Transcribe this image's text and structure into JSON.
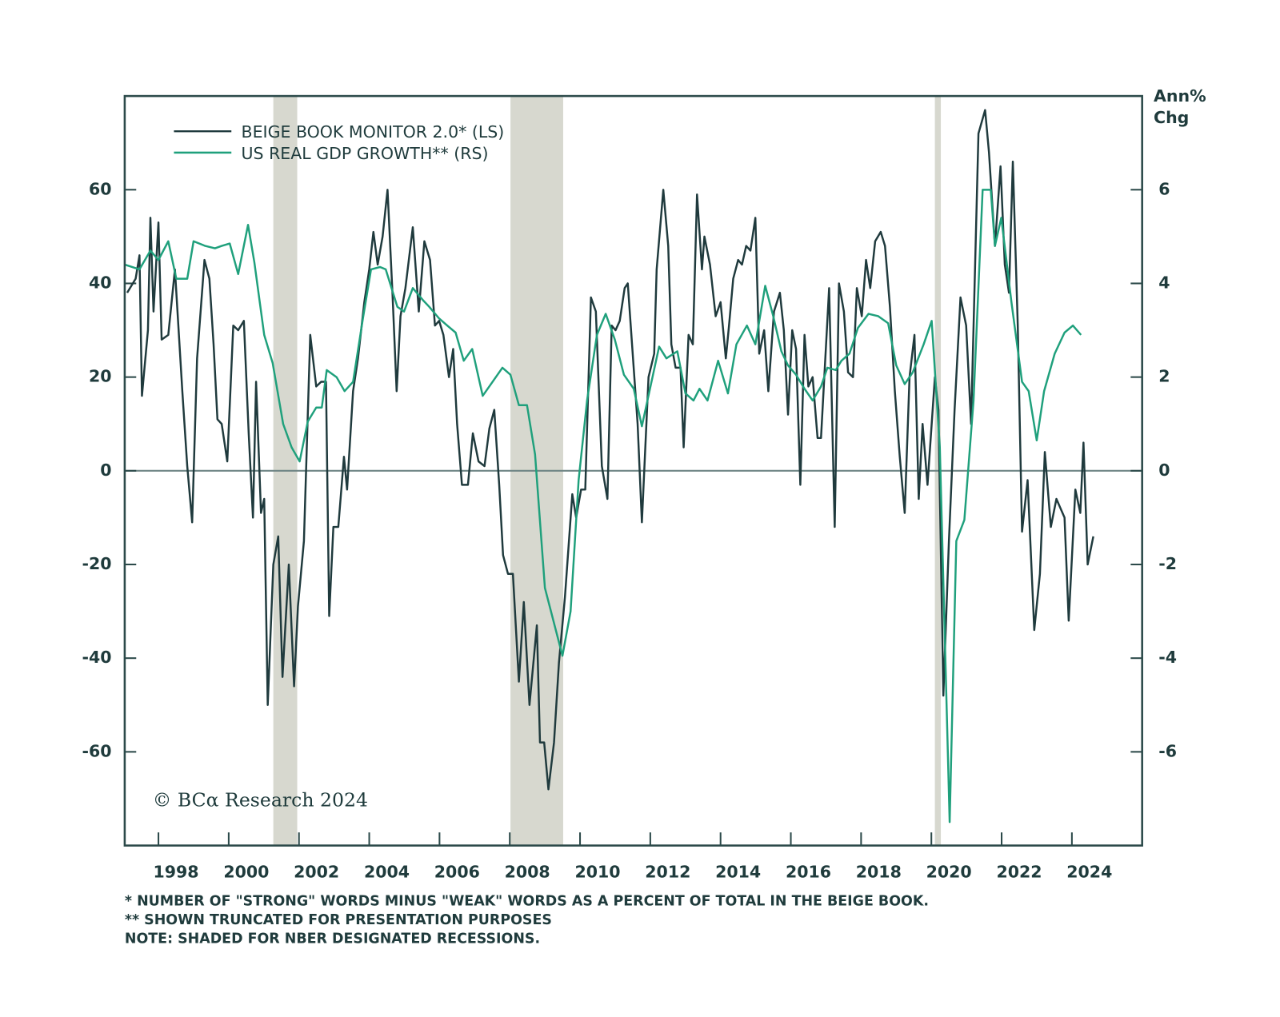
{
  "chart_data": {
    "type": "line",
    "series": [
      {
        "name": "BEIGE BOOK MONITOR 2.0* (LS)",
        "color": "#1f3a3d",
        "axis": "y",
        "x": [
          1997.11,
          1997.35,
          1997.46,
          1997.53,
          1997.7,
          1997.77,
          1997.86,
          1998.0,
          1998.09,
          1998.28,
          1998.47,
          1998.68,
          1998.82,
          1998.96,
          1999.1,
          1999.31,
          1999.45,
          1999.57,
          1999.68,
          1999.8,
          1999.96,
          2000.13,
          2000.27,
          2000.43,
          2000.57,
          2000.69,
          2000.78,
          2000.92,
          2001.01,
          2001.11,
          2001.27,
          2001.41,
          2001.53,
          2001.71,
          2001.86,
          2001.97,
          2002.14,
          2002.32,
          2002.49,
          2002.63,
          2002.77,
          2002.86,
          2002.98,
          2003.12,
          2003.28,
          2003.37,
          2003.54,
          2003.68,
          2003.86,
          2004.0,
          2004.12,
          2004.24,
          2004.38,
          2004.52,
          2004.66,
          2004.78,
          2004.89,
          2005.03,
          2005.24,
          2005.41,
          2005.57,
          2005.73,
          2005.87,
          2005.99,
          2006.11,
          2006.27,
          2006.39,
          2006.5,
          2006.64,
          2006.81,
          2006.95,
          2007.11,
          2007.28,
          2007.42,
          2007.56,
          2007.7,
          2007.81,
          2007.95,
          2008.09,
          2008.26,
          2008.4,
          2008.56,
          2008.77,
          2008.86,
          2008.98,
          2009.1,
          2009.26,
          2009.4,
          2009.57,
          2009.78,
          2009.89,
          2010.03,
          2010.15,
          2010.31,
          2010.45,
          2010.62,
          2010.78,
          2010.9,
          2011.01,
          2011.13,
          2011.27,
          2011.36,
          2011.48,
          2011.64,
          2011.76,
          2011.95,
          2012.11,
          2012.18,
          2012.37,
          2012.51,
          2012.6,
          2012.72,
          2012.86,
          2012.95,
          2013.09,
          2013.21,
          2013.33,
          2013.47,
          2013.54,
          2013.7,
          2013.86,
          2014.0,
          2014.15,
          2014.24,
          2014.36,
          2014.5,
          2014.61,
          2014.73,
          2014.85,
          2014.99,
          2015.1,
          2015.24,
          2015.36,
          2015.52,
          2015.69,
          2015.8,
          2015.92,
          2016.04,
          2016.15,
          2016.27,
          2016.39,
          2016.5,
          2016.62,
          2016.76,
          2016.86,
          2017.09,
          2017.25,
          2017.37,
          2017.51,
          2017.63,
          2017.77,
          2017.88,
          2018.02,
          2018.14,
          2018.26,
          2018.4,
          2018.56,
          2018.68,
          2018.82,
          2018.96,
          2019.1,
          2019.24,
          2019.38,
          2019.52,
          2019.64,
          2019.75,
          2019.89,
          2020.1,
          2020.2,
          2020.34,
          2020.5,
          2020.66,
          2020.83,
          2020.99,
          2021.13,
          2021.34,
          2021.53,
          2021.64,
          2021.81,
          2021.97,
          2022.09,
          2022.21,
          2022.32,
          2022.46,
          2022.58,
          2022.74,
          2022.93,
          2023.09,
          2023.23,
          2023.4,
          2023.56,
          2023.79,
          2023.91,
          2024.1,
          2024.24,
          2024.33,
          2024.45,
          2024.61
        ],
        "values": [
          38,
          41,
          46,
          16,
          30,
          54,
          34,
          53,
          28,
          29,
          43,
          17,
          1,
          -11,
          24,
          45,
          41,
          27,
          11,
          10,
          2,
          31,
          30,
          32,
          8,
          -10,
          19,
          -9,
          -6,
          -50,
          -20,
          -14,
          -44,
          -20,
          -46,
          -29,
          -15,
          29,
          18,
          19,
          19,
          -31,
          -12,
          -12,
          3,
          -4,
          17,
          24,
          36,
          43,
          51,
          44,
          50,
          60,
          38,
          17,
          33,
          39,
          52,
          34,
          49,
          45,
          31,
          32,
          29,
          20,
          26,
          10,
          -3,
          -3,
          8,
          2,
          1,
          9,
          13,
          -3,
          -18,
          -22,
          -22,
          -45,
          -28,
          -50,
          -33,
          -58,
          -58,
          -68,
          -58,
          -41,
          -27,
          -5,
          -10,
          -4,
          -4,
          37,
          34,
          1,
          -6,
          31,
          30,
          32,
          39,
          40,
          27,
          10,
          -11,
          20,
          25,
          43,
          60,
          48,
          27,
          22,
          22,
          5,
          29,
          27,
          59,
          43,
          50,
          44,
          33,
          36,
          24,
          31,
          41,
          45,
          44,
          48,
          47,
          54,
          25,
          30,
          17,
          34,
          38,
          30,
          12,
          30,
          26,
          -3,
          29,
          18,
          20,
          7,
          7,
          39,
          -12,
          40,
          34,
          21,
          20,
          39,
          33,
          45,
          39,
          49,
          51,
          48,
          35,
          17,
          3,
          -9,
          20,
          29,
          -6,
          10,
          -3,
          20,
          13,
          -48,
          -15,
          13,
          37,
          31,
          10,
          72,
          77,
          68,
          48,
          65,
          44,
          38,
          66,
          31,
          -13,
          -2,
          -34,
          -22,
          4,
          -12,
          -6,
          -10,
          -32,
          -4,
          -9,
          6,
          -20,
          -14
        ]
      },
      {
        "name": "US REAL GDP GROWTH** (RS)",
        "color": "#1fa07c",
        "axis": "y2",
        "x": [
          1997.04,
          1997.46,
          1997.77,
          1998.0,
          1998.28,
          1998.51,
          1998.82,
          1999.0,
          1999.33,
          1999.61,
          1999.8,
          2000.03,
          2000.27,
          2000.55,
          2000.73,
          2001.01,
          2001.25,
          2001.55,
          2001.79,
          2002.02,
          2002.25,
          2002.49,
          2002.65,
          2002.79,
          2003.07,
          2003.3,
          2003.54,
          2003.82,
          2004.05,
          2004.31,
          2004.47,
          2004.8,
          2004.99,
          2005.24,
          2005.52,
          2005.71,
          2005.99,
          2006.22,
          2006.46,
          2006.69,
          2006.93,
          2007.23,
          2007.51,
          2007.79,
          2008.02,
          2008.26,
          2008.49,
          2008.72,
          2009.0,
          2009.26,
          2009.5,
          2009.73,
          2009.96,
          2010.2,
          2010.48,
          2010.73,
          2010.99,
          2011.25,
          2011.53,
          2011.76,
          2012.02,
          2012.25,
          2012.46,
          2012.77,
          2013.0,
          2013.23,
          2013.4,
          2013.63,
          2013.93,
          2014.21,
          2014.45,
          2014.75,
          2014.99,
          2015.27,
          2015.5,
          2015.73,
          2015.92,
          2016.15,
          2016.39,
          2016.62,
          2016.86,
          2017.04,
          2017.28,
          2017.44,
          2017.67,
          2017.91,
          2018.21,
          2018.49,
          2018.77,
          2019.0,
          2019.24,
          2019.47,
          2019.78,
          2020.01,
          2020.24,
          2020.52,
          2020.71,
          2020.94,
          2021.2,
          2021.46,
          2021.69,
          2021.81,
          2021.99,
          2022.28,
          2022.58,
          2022.77,
          2023.0,
          2023.21,
          2023.51,
          2023.79,
          2024.03,
          2024.26
        ],
        "values": [
          4.4,
          4.3,
          4.7,
          4.5,
          4.9,
          4.1,
          4.1,
          4.9,
          4.8,
          4.75,
          4.8,
          4.85,
          4.2,
          5.25,
          4.45,
          2.9,
          2.3,
          1.0,
          0.5,
          0.2,
          1.05,
          1.35,
          1.35,
          2.15,
          2.0,
          1.7,
          1.9,
          3.25,
          4.3,
          4.35,
          4.3,
          3.5,
          3.4,
          3.9,
          3.65,
          3.5,
          3.25,
          3.1,
          2.95,
          2.35,
          2.6,
          1.6,
          1.9,
          2.2,
          2.05,
          1.4,
          1.4,
          0.35,
          -2.5,
          -3.25,
          -3.95,
          -3.0,
          -0.2,
          1.5,
          2.9,
          3.35,
          2.8,
          2.05,
          1.75,
          0.95,
          1.85,
          2.65,
          2.4,
          2.55,
          1.65,
          1.5,
          1.75,
          1.5,
          2.35,
          1.65,
          2.7,
          3.1,
          2.7,
          3.95,
          3.3,
          2.55,
          2.25,
          2.05,
          1.75,
          1.5,
          1.8,
          2.2,
          2.15,
          2.35,
          2.5,
          3.05,
          3.35,
          3.3,
          3.15,
          2.25,
          1.85,
          2.1,
          2.7,
          3.2,
          0.5,
          -7.5,
          -1.5,
          -1.05,
          1.5,
          6.0,
          6.0,
          4.8,
          5.4,
          3.6,
          1.9,
          1.7,
          0.65,
          1.7,
          2.5,
          2.95,
          3.1,
          2.9
        ]
      }
    ],
    "recessions": [
      [
        2001.27,
        2001.95
      ],
      [
        2008.02,
        2009.52
      ],
      [
        2020.1,
        2020.27
      ]
    ],
    "recession_color": "#d7d8cf",
    "zero_line": true,
    "xlim": [
      1997.04,
      2026.0
    ],
    "xticks": [
      1998,
      2000,
      2002,
      2004,
      2006,
      2008,
      2010,
      2012,
      2014,
      2016,
      2018,
      2020,
      2022,
      2024
    ],
    "ylim": [
      -80,
      80
    ],
    "yticks": [
      -60,
      -40,
      -20,
      0,
      20,
      40,
      60
    ],
    "y2lim": [
      -8,
      8
    ],
    "y2ticks": [
      -6,
      -4,
      -2,
      0,
      2,
      4,
      6
    ],
    "y2label": [
      "Ann%",
      "Chg"
    ],
    "legend": "upper left",
    "source": "© BCα Research 2024",
    "footnotes": [
      "*  NUMBER OF \"STRONG\" WORDS MINUS \"WEAK\" WORDS AS A PERCENT OF TOTAL IN THE BEIGE BOOK.",
      "**  SHOWN TRUNCATED FOR PRESENTATION PURPOSES",
      "NOTE: SHADED FOR NBER DESIGNATED RECESSIONS."
    ]
  }
}
